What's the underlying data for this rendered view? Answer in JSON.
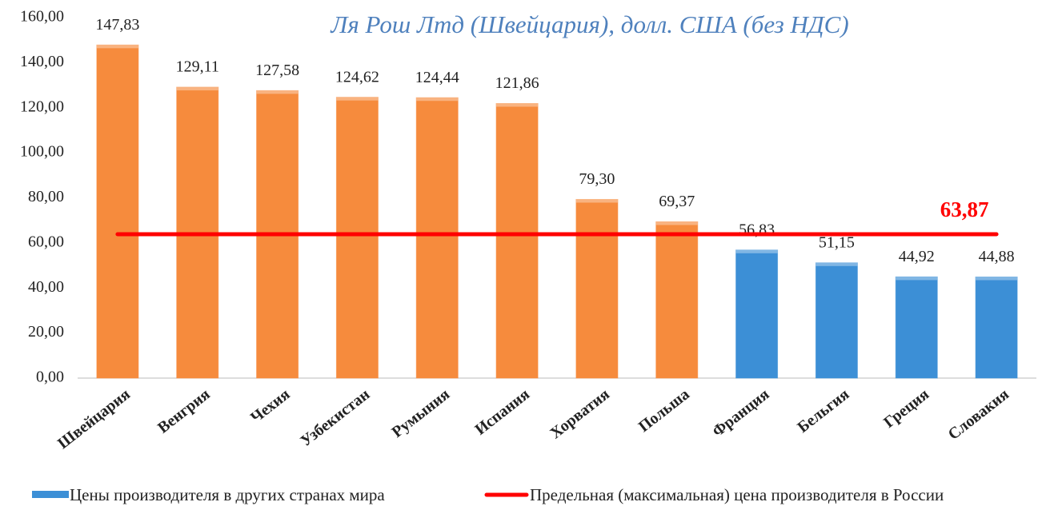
{
  "chart_data": {
    "type": "bar",
    "title": "Ля Рош Лтд (Швейцария), долл. США (без НДС)",
    "categories": [
      "Швейцария",
      "Венгрия",
      "Чехия",
      "Узбекистан",
      "Румыния",
      "Испания",
      "Хорватия",
      "Польша",
      "Франция",
      "Бельгия",
      "Греция",
      "Словакия"
    ],
    "series": [
      {
        "name": "Цены производителя в других странах мира",
        "color": "#3c8fd6",
        "colors": [
          "#f68b3d",
          "#f68b3d",
          "#f68b3d",
          "#f68b3d",
          "#f68b3d",
          "#f68b3d",
          "#f68b3d",
          "#f68b3d",
          "#3c8fd6",
          "#3c8fd6",
          "#3c8fd6",
          "#3c8fd6"
        ],
        "values": [
          147.83,
          129.11,
          127.58,
          124.62,
          124.44,
          121.86,
          79.3,
          69.37,
          56.83,
          51.15,
          44.92,
          44.88
        ],
        "value_labels": [
          "147,83",
          "129,11",
          "127,58",
          "124,62",
          "124,44",
          "121,86",
          "79,30",
          "69,37",
          "56,83",
          "51,15",
          "44,92",
          "44,88"
        ]
      }
    ],
    "reference_line": {
      "name": "Предельная (максимальная) цена производителя в России",
      "value": 63.87,
      "label": "63,87",
      "color": "#ff0000"
    },
    "ylim": [
      0,
      160
    ],
    "yticks": [
      {
        "value": 0,
        "label": "0,00"
      },
      {
        "value": 20,
        "label": "20,00"
      },
      {
        "value": 40,
        "label": "40,00"
      },
      {
        "value": 60,
        "label": "60,00"
      },
      {
        "value": 80,
        "label": "80,00"
      },
      {
        "value": 100,
        "label": "100,00"
      },
      {
        "value": 120,
        "label": "120,00"
      },
      {
        "value": 140,
        "label": "140,00"
      },
      {
        "value": 160,
        "label": "160,00"
      }
    ]
  }
}
